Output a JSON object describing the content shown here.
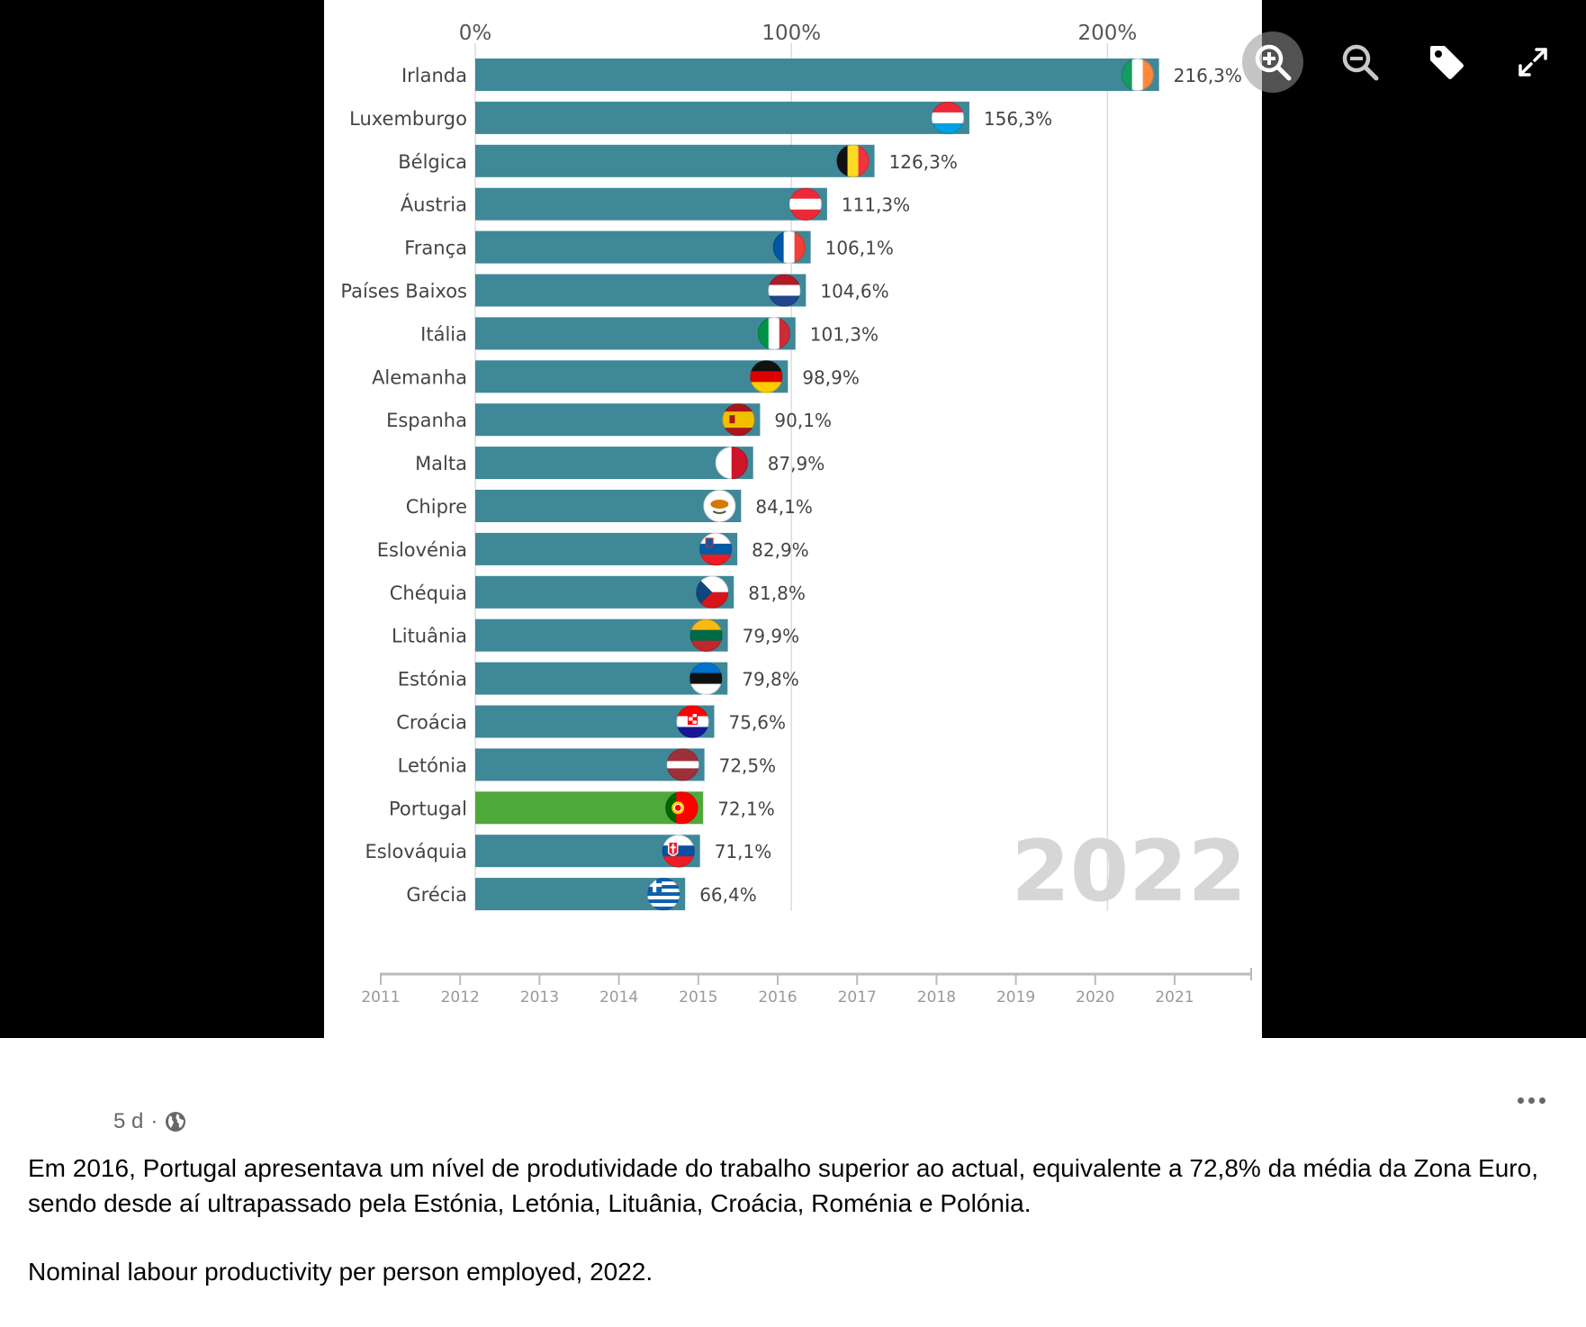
{
  "post": {
    "time": "5 d",
    "separator": "·",
    "audience_icon": "globe-icon",
    "more_icon": "more-dots-icon",
    "text_1": "Em 2016, Portugal apresentava um nível de produtividade do trabalho superior ao actual, equivalente a 72,8% da média da Zona Euro, sendo desde aí ultrapassado pela Estónia, Letónia, Lituânia, Croácia, Roménia e Polónia.",
    "text_2": "Nominal labour productivity per person employed, 2022."
  },
  "viewer_toolbar": {
    "zoom_in_icon": "zoom-in-icon",
    "zoom_out_icon": "zoom-out-icon",
    "tag_icon": "tag-icon",
    "fullscreen_icon": "fullscreen-icon"
  },
  "chart_data": {
    "type": "bar",
    "orientation": "horizontal",
    "categories": [
      "Irlanda",
      "Luxemburgo",
      "Bélgica",
      "Áustria",
      "França",
      "Países Baixos",
      "Itália",
      "Alemanha",
      "Espanha",
      "Malta",
      "Chipre",
      "Eslovénia",
      "Chéquia",
      "Lituânia",
      "Estónia",
      "Croácia",
      "Letónia",
      "Portugal",
      "Eslováquia",
      "Grécia"
    ],
    "values": [
      216.3,
      156.3,
      126.3,
      111.3,
      106.1,
      104.6,
      101.3,
      98.9,
      90.1,
      87.9,
      84.1,
      82.9,
      81.8,
      79.9,
      79.8,
      75.6,
      72.5,
      72.1,
      71.1,
      66.4
    ],
    "value_labels": [
      "216,3%",
      "156,3%",
      "126,3%",
      "111,3%",
      "106,1%",
      "104,6%",
      "101,3%",
      "98,9%",
      "90,1%",
      "87,9%",
      "84,1%",
      "82,9%",
      "81,8%",
      "79,9%",
      "79,8%",
      "75,6%",
      "72,5%",
      "72,1%",
      "71,1%",
      "66,4%"
    ],
    "highlight_category": "Portugal",
    "colors": {
      "bar": "#3e8898",
      "highlight": "#4ea93a",
      "grid": "#dcdcdc",
      "year_watermark": "#d6d6d6",
      "text": "#444444"
    },
    "flags": [
      "ie",
      "lu",
      "be",
      "at",
      "fr",
      "nl",
      "it",
      "de",
      "es",
      "mt",
      "cy",
      "si",
      "cz",
      "lt",
      "ee",
      "hr",
      "lv",
      "pt",
      "sk",
      "gr"
    ],
    "x_axis": {
      "ticks": [
        0,
        100,
        200
      ],
      "tick_labels": [
        "0%",
        "100%",
        "200%"
      ],
      "range": [
        0,
        225
      ]
    },
    "grid": true,
    "year_watermark": "2022",
    "timeline": {
      "years": [
        "2011",
        "2012",
        "2013",
        "2014",
        "2015",
        "2016",
        "2017",
        "2018",
        "2019",
        "2020",
        "2021"
      ]
    }
  }
}
